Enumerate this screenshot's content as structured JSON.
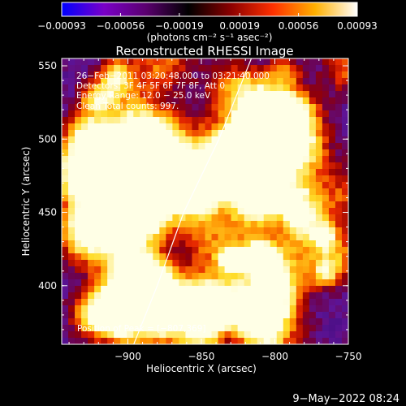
{
  "chart_data": {
    "type": "heatmap",
    "title": "Reconstructed RHESSI Image",
    "xlabel": "Heliocentric X (arcsec)",
    "ylabel": "Heliocentric Y (arcsec)",
    "xlim": [
      -945,
      -750
    ],
    "ylim": [
      360,
      555
    ],
    "xticks": [
      -900,
      -850,
      -800,
      -750
    ],
    "xtick_labels": [
      "−900",
      "−850",
      "−800",
      "−750"
    ],
    "yticks": [
      400,
      450,
      500,
      550
    ],
    "ytick_labels": [
      "400",
      "450",
      "500",
      "550"
    ],
    "colorbar": {
      "ticks": [
        -0.00093,
        -0.00056,
        -0.00019,
        0.00019,
        0.00056,
        0.00093
      ],
      "tick_labels": [
        "−0.00093",
        "−0.00056",
        "−0.00019",
        "0.00019",
        "0.00056",
        "0.00093"
      ],
      "unit_label": "(photons cm⁻² s⁻¹ asec⁻²)",
      "range": [
        -0.00093,
        0.00093
      ],
      "colors": [
        "#0000ff",
        "#7a00c8",
        "#5a006e",
        "#000000",
        "#8a0000",
        "#ff3000",
        "#ffb000",
        "#ffffff"
      ]
    },
    "annotations": [
      "26−Feb−2011 03:20:48.000 to 03:21:40.000",
      "Detectors: 3F 4F 5F 6F 7F 8F, Att 0",
      "Energy Range: 12.0 − 25.0 keV",
      "Clean      Total counts: 997."
    ],
    "peak_label": "Position of Peak = [−807,369]",
    "peak": [
      -807,
      369
    ],
    "limb": [
      [
        -896,
        360
      ],
      [
        -880,
        400
      ],
      [
        -862,
        450
      ],
      [
        -838,
        500
      ],
      [
        -816,
        555
      ]
    ],
    "grid": false
  },
  "footer": {
    "timestamp": "9−May−2022 08:24"
  }
}
